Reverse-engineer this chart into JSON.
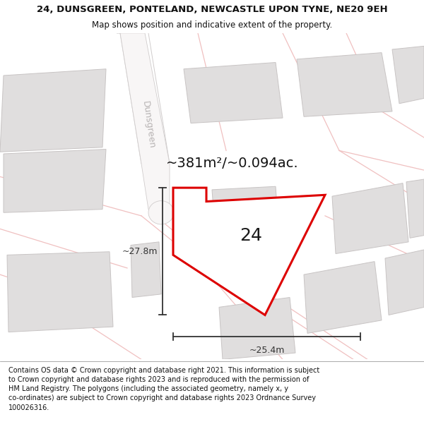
{
  "title_line1": "24, DUNSGREEN, PONTELAND, NEWCASTLE UPON TYNE, NE20 9EH",
  "title_line2": "Map shows position and indicative extent of the property.",
  "footer_text": "Contains OS data © Crown copyright and database right 2021. This information is subject to Crown copyright and database rights 2023 and is reproduced with the permission of HM Land Registry. The polygons (including the associated geometry, namely x, y co-ordinates) are subject to Crown copyright and database rights 2023 Ordnance Survey 100026316.",
  "area_label": "~381m²/~0.094ac.",
  "property_number": "24",
  "dim_height": "~27.8m",
  "dim_width": "~25.4m",
  "street_label": "Dunsgreen",
  "map_bg": "#f5f3f3",
  "property_fill": "#ffffff",
  "property_stroke": "#dd0000",
  "building_fill": "#e0dede",
  "building_edge": "#c8c4c4",
  "road_pink": "#f0c0c0",
  "road_gray": "#d0cccc",
  "dim_color": "#333333",
  "title_fontsize": 9.5,
  "subtitle_fontsize": 8.5,
  "footer_fontsize": 7.0,
  "area_fontsize": 14,
  "number_fontsize": 18,
  "dim_fontsize": 9,
  "street_fontsize": 9
}
